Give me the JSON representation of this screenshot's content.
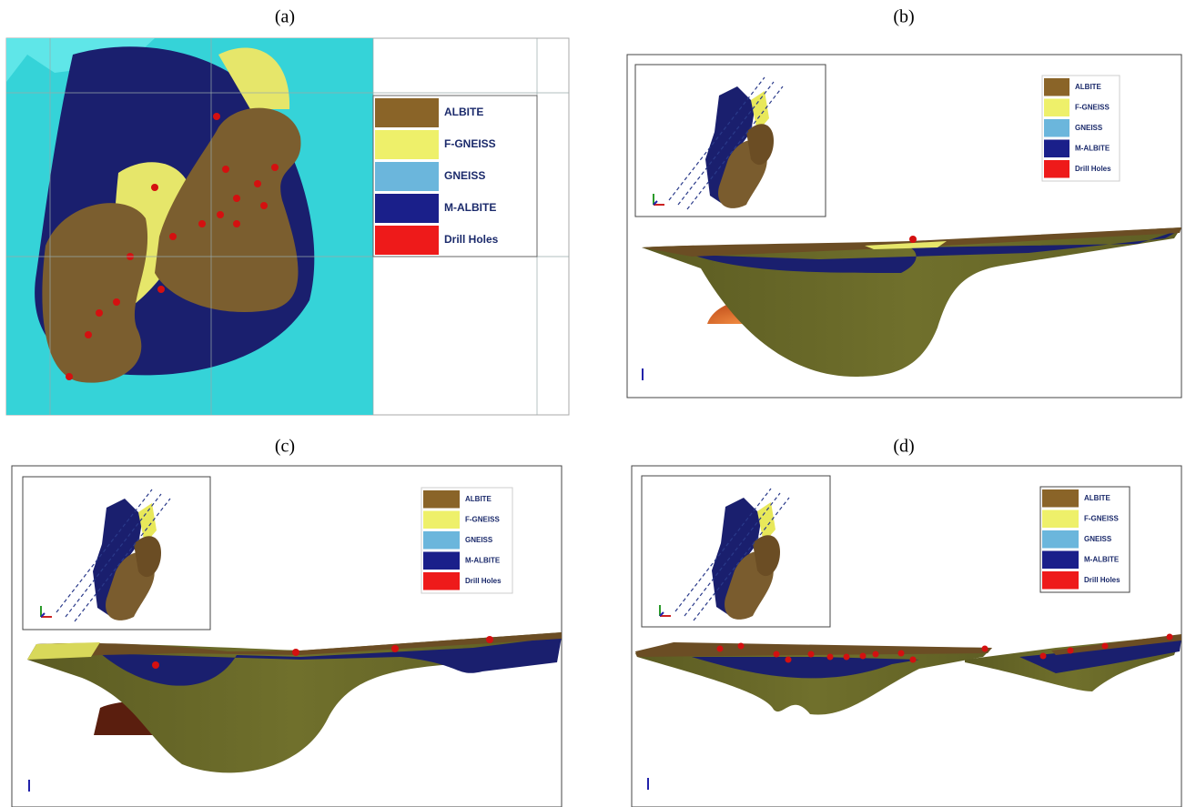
{
  "panels": [
    {
      "label": "(a)",
      "legend": [
        "ALBITE",
        "F-GNEISS",
        "GNEISS",
        "M-ALBITE",
        "Drill Holes"
      ]
    },
    {
      "label": "(b)",
      "legend": [
        "ALBITE",
        "F-GNEISS",
        "GNEISS",
        "M-ALBITE",
        "Drill Holes"
      ]
    },
    {
      "label": "(c)",
      "legend": [
        "ALBITE",
        "F-GNEISS",
        "GNEISS",
        "M-ALBITE",
        "Drill Holes"
      ]
    },
    {
      "label": "(d)",
      "legend": [
        "ALBITE",
        "F-GNEISS",
        "GNEISS",
        "M-ALBITE",
        "Drill Holes"
      ]
    }
  ]
}
